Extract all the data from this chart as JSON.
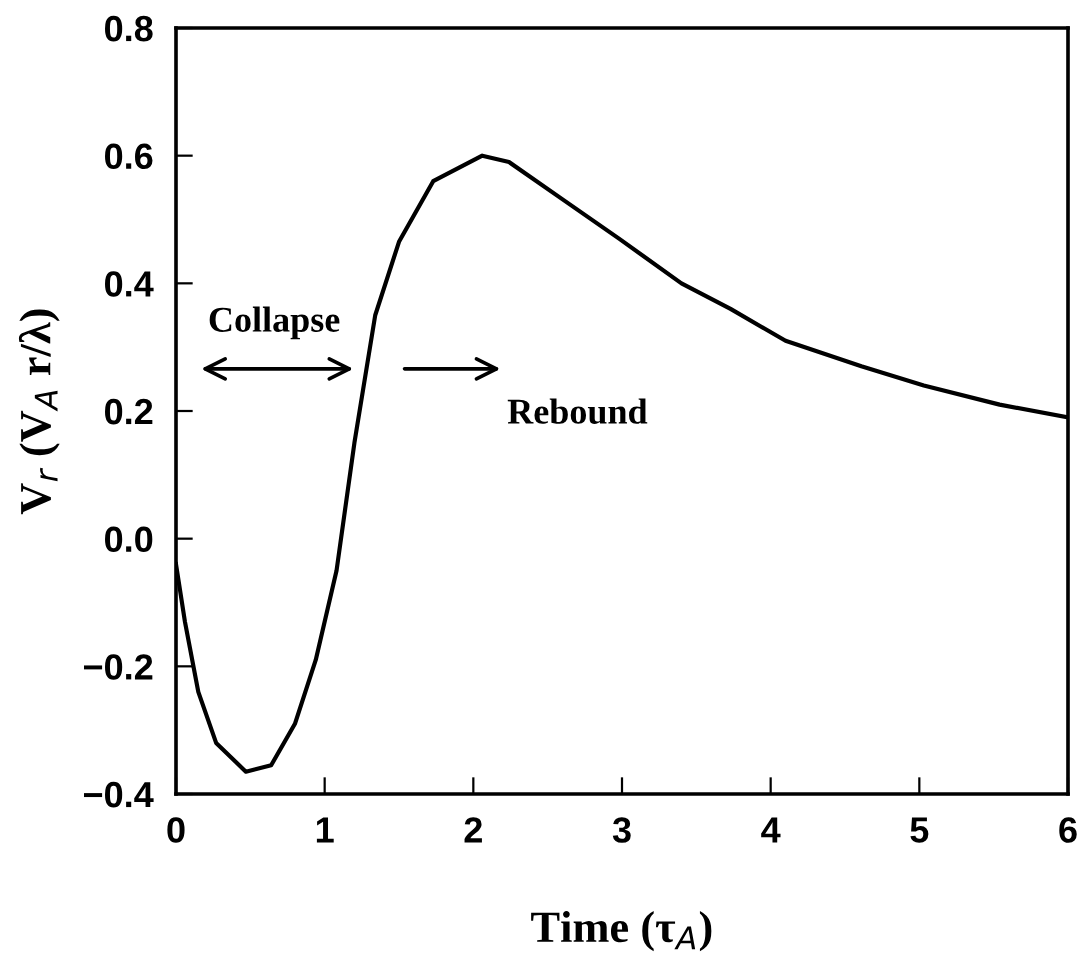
{
  "chart_data": {
    "type": "line",
    "xlabel": "Time (τ$_{A}$)",
    "ylabel": "V$_{r}$ (V$_{A}$ r/λ)",
    "xlim": [
      0,
      6
    ],
    "ylim": [
      -0.4,
      0.8
    ],
    "xticks": [
      0,
      1,
      2,
      3,
      4,
      5,
      6
    ],
    "yticks": [
      {
        "value": -0.4,
        "label": "−0.4"
      },
      {
        "value": -0.2,
        "label": "−0.2"
      },
      {
        "value": 0.0,
        "label": "0.0"
      },
      0.2,
      0.4,
      0.6,
      0.8
    ],
    "grid": false,
    "legend": false,
    "marker": "none",
    "line_style": "solid",
    "series": [
      {
        "color": "#000000",
        "x": [
          0,
          0.06,
          0.15,
          0.27,
          0.47,
          0.64,
          0.8,
          0.94,
          1.08,
          1.2,
          1.34,
          1.5,
          1.73,
          2.06,
          2.24,
          2.61,
          2.98,
          3.4,
          3.73,
          4.1,
          4.61,
          5.03,
          5.54,
          6.0
        ],
        "values": [
          -0.04,
          -0.13,
          -0.24,
          -0.32,
          -0.365,
          -0.355,
          -0.29,
          -0.19,
          -0.05,
          0.15,
          0.35,
          0.465,
          0.56,
          0.6,
          0.59,
          0.53,
          0.47,
          0.4,
          0.36,
          0.31,
          0.27,
          0.24,
          0.21,
          0.19
        ]
      }
    ],
    "annotations": [
      "Collapse",
      "Rebound"
    ]
  }
}
